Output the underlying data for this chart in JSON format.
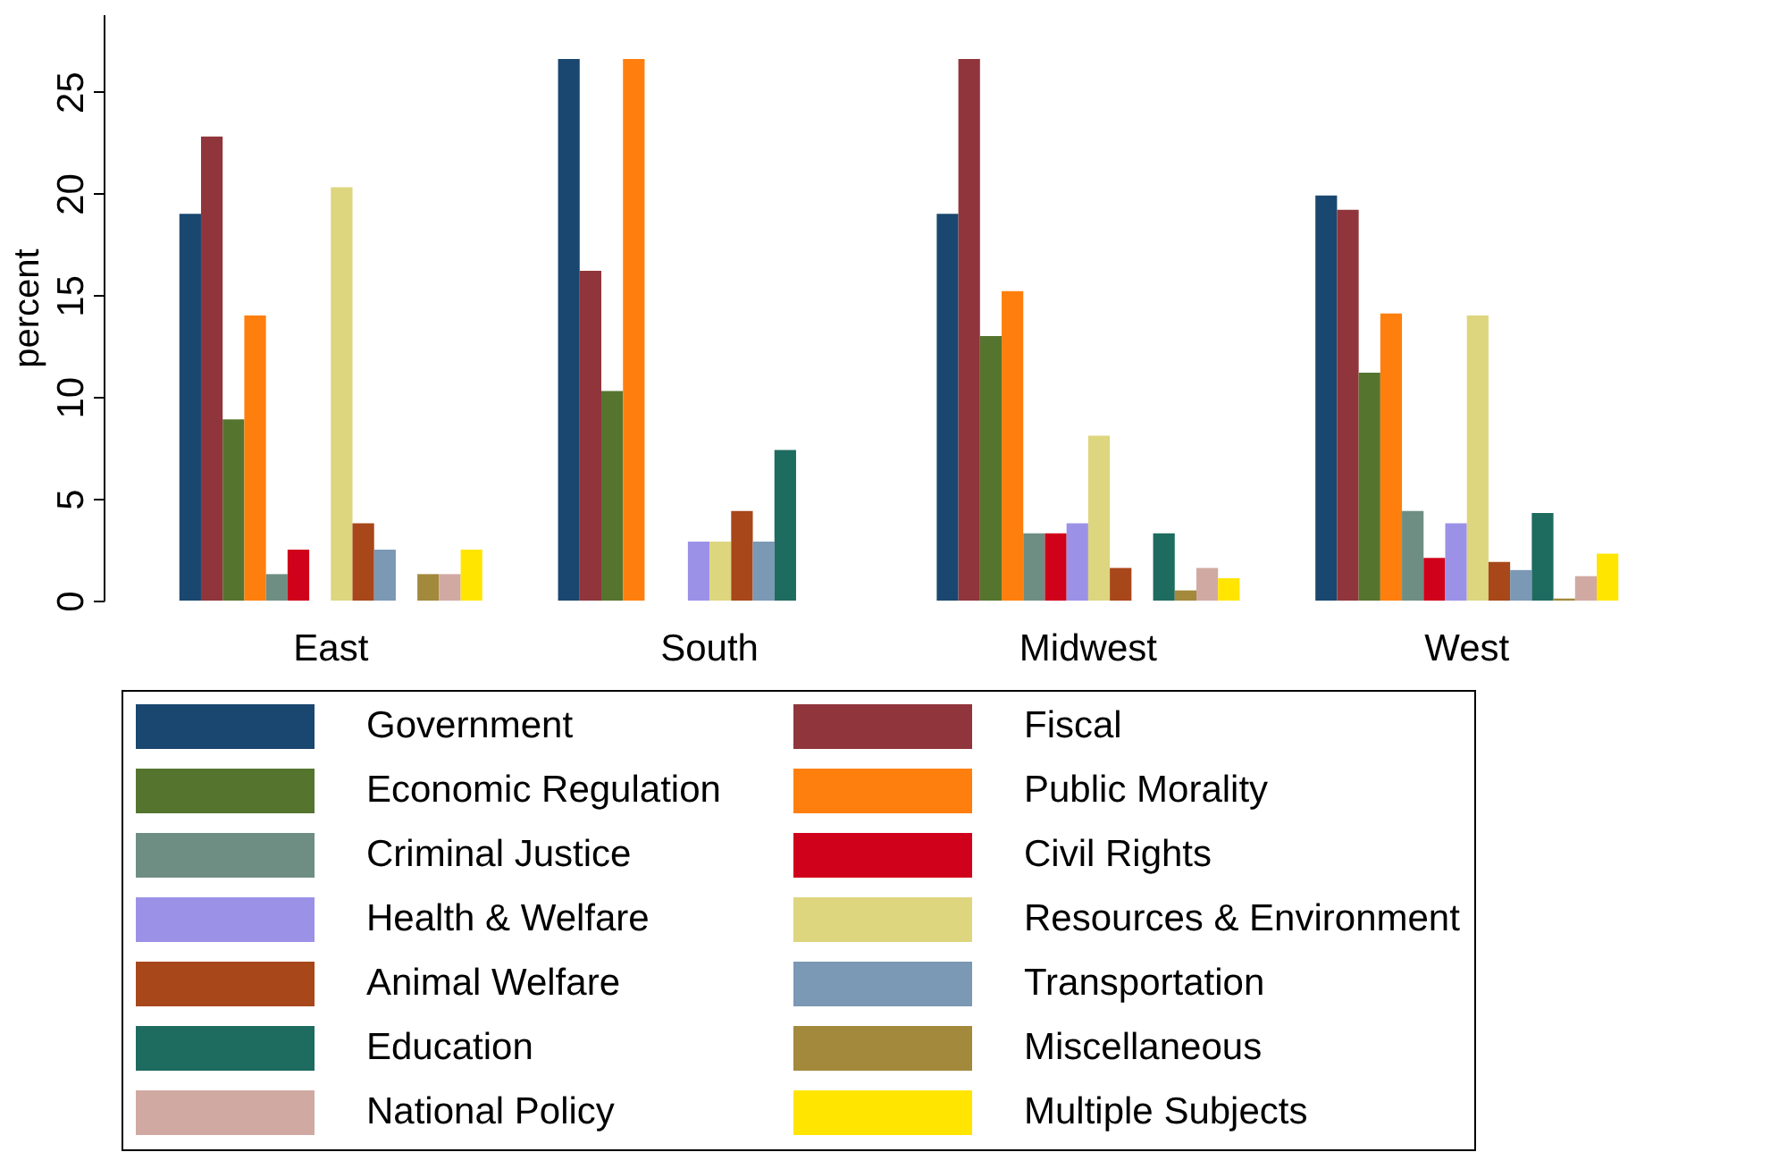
{
  "chart_data": {
    "type": "bar",
    "ylabel": "percent",
    "categories": [
      "East",
      "South",
      "Midwest",
      "West"
    ],
    "ylim": [
      0,
      28.8
    ],
    "yticks": [
      0,
      5,
      10,
      15,
      20,
      25
    ],
    "grid": false,
    "legend": "bottom",
    "series": [
      {
        "name": "Government",
        "color": "#1a476f",
        "values": [
          19.0,
          26.6,
          19.0,
          19.9
        ]
      },
      {
        "name": "Fiscal",
        "color": "#90353b",
        "values": [
          22.8,
          16.2,
          26.6,
          19.2
        ]
      },
      {
        "name": "Economic Regulation",
        "color": "#55752f",
        "values": [
          8.9,
          10.3,
          13.0,
          11.2
        ]
      },
      {
        "name": "Public Morality",
        "color": "#ff7f0e",
        "values": [
          14.0,
          26.6,
          15.2,
          14.1
        ]
      },
      {
        "name": "Criminal Justice",
        "color": "#6e8e84",
        "values": [
          1.3,
          null,
          3.3,
          4.4
        ]
      },
      {
        "name": "Civil Rights",
        "color": "#d0021b",
        "values": [
          2.5,
          null,
          3.3,
          2.1
        ]
      },
      {
        "name": "Health & Welfare",
        "color": "#9b92e8",
        "values": [
          null,
          2.9,
          3.8,
          3.8
        ]
      },
      {
        "name": "Resources & Environment",
        "color": "#ded57f",
        "values": [
          20.3,
          2.9,
          8.1,
          14.0
        ]
      },
      {
        "name": "Animal Welfare",
        "color": "#a8471a",
        "values": [
          3.8,
          4.4,
          1.6,
          1.9
        ]
      },
      {
        "name": "Transportation",
        "color": "#7b98b4",
        "values": [
          2.5,
          2.9,
          null,
          1.5
        ]
      },
      {
        "name": "Education",
        "color": "#1e6b60",
        "values": [
          null,
          7.4,
          3.3,
          4.3
        ]
      },
      {
        "name": "Miscellaneous",
        "color": "#a2893b",
        "values": [
          1.3,
          null,
          0.5,
          0.1
        ]
      },
      {
        "name": "National Policy",
        "color": "#d1a9a3",
        "values": [
          1.3,
          null,
          1.6,
          1.2
        ]
      },
      {
        "name": "Multiple Subjects",
        "color": "#ffe500",
        "values": [
          2.5,
          null,
          1.1,
          2.3
        ]
      }
    ]
  }
}
